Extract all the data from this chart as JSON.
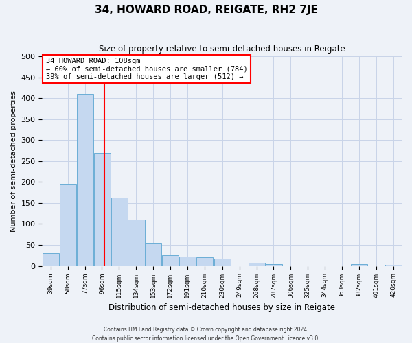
{
  "title": "34, HOWARD ROAD, REIGATE, RH2 7JE",
  "subtitle": "Size of property relative to semi-detached houses in Reigate",
  "xlabel": "Distribution of semi-detached houses by size in Reigate",
  "ylabel": "Number of semi-detached properties",
  "bin_labels": [
    "39sqm",
    "58sqm",
    "77sqm",
    "96sqm",
    "115sqm",
    "134sqm",
    "153sqm",
    "172sqm",
    "191sqm",
    "210sqm",
    "230sqm",
    "249sqm",
    "268sqm",
    "287sqm",
    "306sqm",
    "325sqm",
    "344sqm",
    "363sqm",
    "382sqm",
    "401sqm",
    "420sqm"
  ],
  "bin_left_edges": [
    39,
    58,
    77,
    96,
    115,
    134,
    153,
    172,
    191,
    210,
    230,
    249,
    268,
    287,
    306,
    325,
    344,
    363,
    382,
    401,
    420
  ],
  "bin_width": 19,
  "bar_heights": [
    31,
    196,
    410,
    270,
    163,
    110,
    55,
    25,
    23,
    20,
    17,
    0,
    8,
    4,
    0,
    0,
    0,
    0,
    5,
    0,
    3
  ],
  "bar_color": "#c5d8f0",
  "bar_edge_color": "#6baed6",
  "vline_x": 108,
  "vline_color": "red",
  "ylim": [
    0,
    500
  ],
  "yticks": [
    0,
    50,
    100,
    150,
    200,
    250,
    300,
    350,
    400,
    450,
    500
  ],
  "grid_color": "#c8d4e8",
  "bg_color": "#eef2f8",
  "annotation_title": "34 HOWARD ROAD: 108sqm",
  "annotation_line1": "← 60% of semi-detached houses are smaller (784)",
  "annotation_line2": "39% of semi-detached houses are larger (512) →",
  "annotation_box_color": "white",
  "annotation_box_edge": "red",
  "footer1": "Contains HM Land Registry data © Crown copyright and database right 2024.",
  "footer2": "Contains public sector information licensed under the Open Government Licence v3.0."
}
